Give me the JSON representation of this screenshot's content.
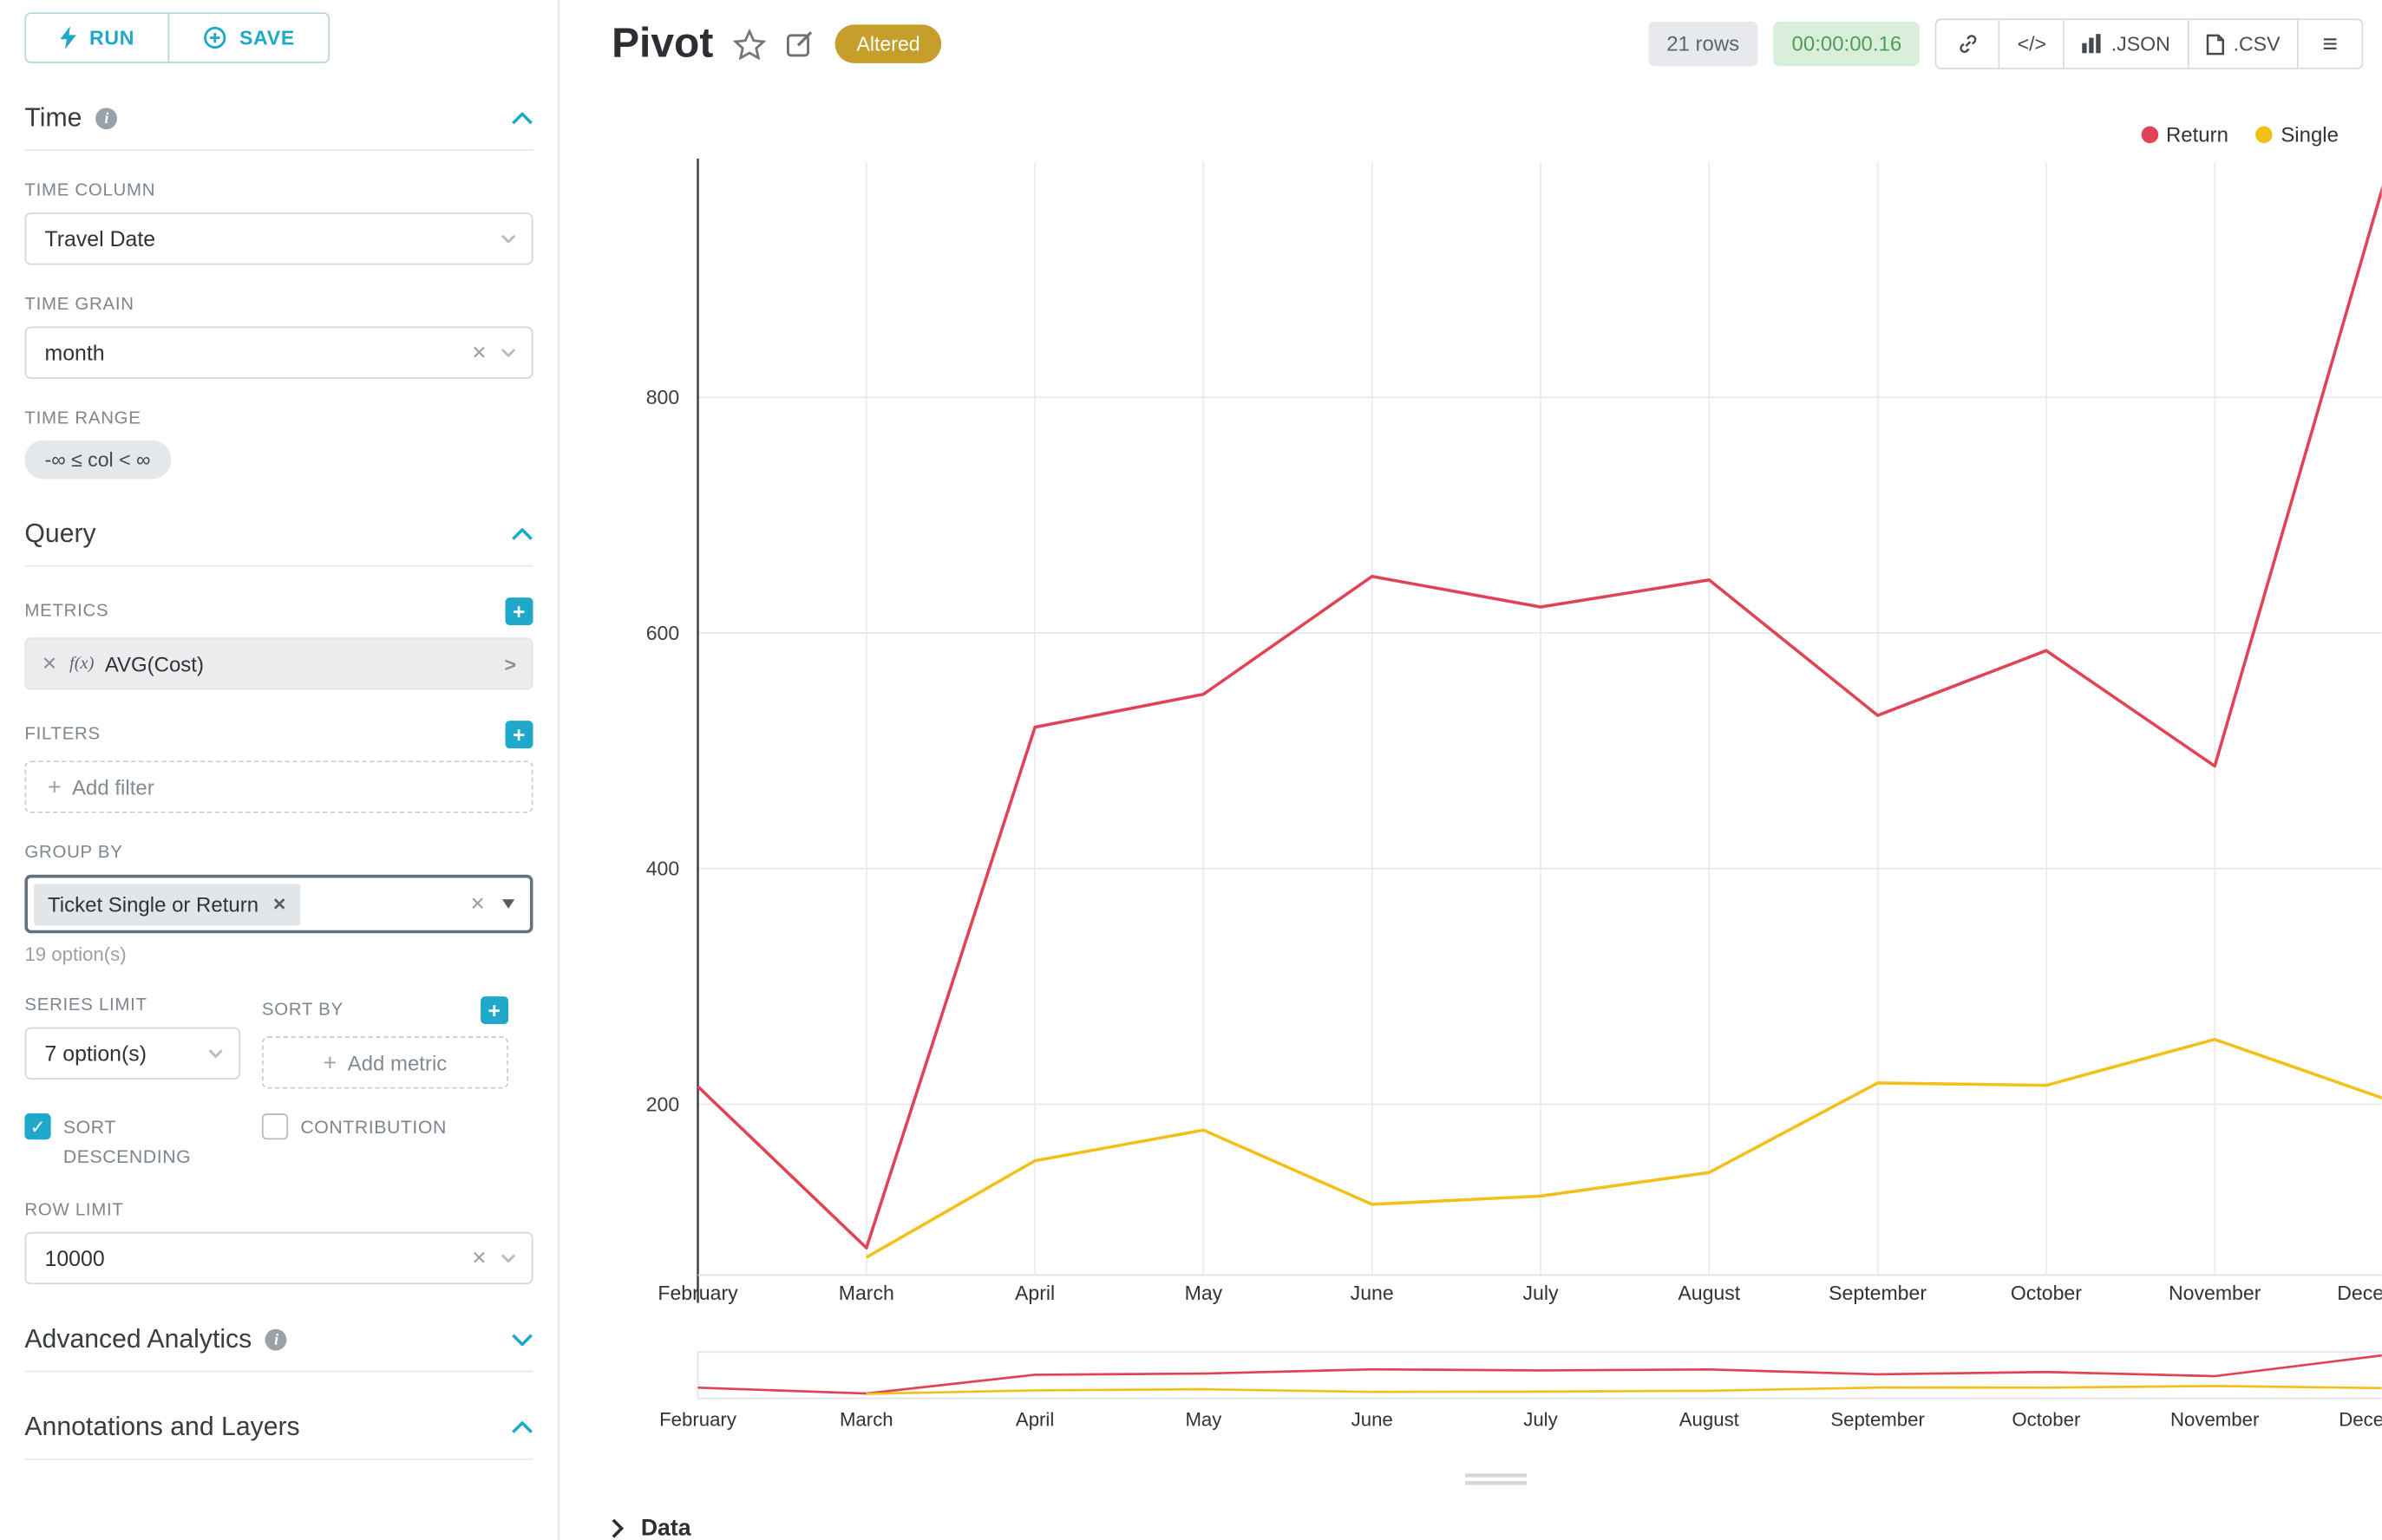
{
  "toolbar": {
    "run_label": "RUN",
    "save_label": "SAVE"
  },
  "sections": {
    "time": {
      "title": "Time",
      "time_column_label": "TIME COLUMN",
      "time_column_value": "Travel Date",
      "time_grain_label": "TIME GRAIN",
      "time_grain_value": "month",
      "time_range_label": "TIME RANGE",
      "time_range_value": "-∞ ≤ col < ∞"
    },
    "query": {
      "title": "Query",
      "metrics_label": "METRICS",
      "metric_prefix": "f(x)",
      "metric_value": "AVG(Cost)",
      "filters_label": "FILTERS",
      "add_filter_label": "Add filter",
      "group_by_label": "GROUP BY",
      "group_by_chip": "Ticket Single or Return",
      "group_by_options": "19 option(s)",
      "series_limit_label": "SERIES LIMIT",
      "series_limit_value": "7 option(s)",
      "sort_by_label": "SORT BY",
      "add_metric_label": "Add metric",
      "sort_descending_label": "SORT DESCENDING",
      "contribution_label": "CONTRIBUTION",
      "row_limit_label": "ROW LIMIT",
      "row_limit_value": "10000"
    },
    "advanced": {
      "title": "Advanced Analytics"
    },
    "annotations": {
      "title": "Annotations and Layers"
    }
  },
  "header": {
    "title": "Pivot",
    "altered_badge": "Altered",
    "rows_badge": "21 rows",
    "timer_badge": "00:00:00.16",
    "code_label": "</>",
    "json_label": ".JSON",
    "csv_label": ".CSV"
  },
  "data_panel": {
    "title": "Data"
  },
  "colors": {
    "accent": "#1fa8c9",
    "altered_badge_bg": "#c59e2b",
    "timer_green_text": "#4f9d57",
    "series_return": "#e04355",
    "series_single": "#f2c018"
  },
  "chart_data": {
    "type": "line",
    "title": "Pivot",
    "categories": [
      "February",
      "March",
      "April",
      "May",
      "June",
      "July",
      "August",
      "September",
      "October",
      "November",
      "December"
    ],
    "series": [
      {
        "name": "Return",
        "color": "#e04355",
        "values": [
          215,
          78,
          520,
          548,
          648,
          622,
          645,
          530,
          585,
          487,
          980
        ]
      },
      {
        "name": "Single",
        "color": "#f2c018",
        "values": [
          null,
          70,
          152,
          178,
          115,
          122,
          142,
          218,
          216,
          255,
          205
        ]
      }
    ],
    "ylabel": "",
    "xlabel": "",
    "ylim": [
      0,
      1000
    ],
    "yticks": [
      200,
      400,
      600,
      800
    ],
    "grid": true,
    "legend_position": "top-right",
    "has_mini_preview": true
  }
}
